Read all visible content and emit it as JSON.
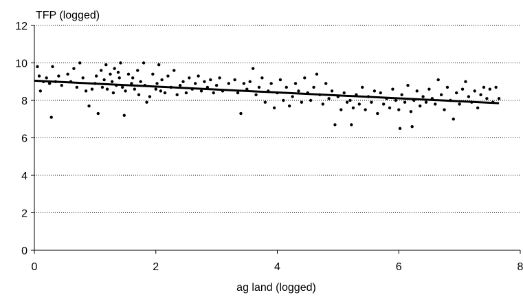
{
  "chart_data": {
    "type": "scatter",
    "title": "",
    "ylabel": "TFP (logged)",
    "xlabel": "ag land (logged)",
    "xlim": [
      0,
      8
    ],
    "ylim": [
      0,
      12
    ],
    "x_ticks": [
      "0",
      "2",
      "4",
      "6",
      "8"
    ],
    "y_ticks": [
      "0",
      "2",
      "4",
      "6",
      "8",
      "10",
      "12"
    ],
    "grid": "horizontal dotted",
    "legend": "none",
    "colors": {
      "points": "#000000",
      "trendline": "#000000",
      "grid": "#000000",
      "axes": "#000000"
    },
    "trendline": {
      "type": "linear",
      "x": [
        0.0,
        7.65
      ],
      "y": [
        9.05,
        7.85
      ]
    },
    "series": [
      {
        "points": [
          [
            0.05,
            9.8
          ],
          [
            0.08,
            9.3
          ],
          [
            0.1,
            8.5
          ],
          [
            0.15,
            9.0
          ],
          [
            0.2,
            9.2
          ],
          [
            0.25,
            8.9
          ],
          [
            0.28,
            7.1
          ],
          [
            0.3,
            9.8
          ],
          [
            0.35,
            9.0
          ],
          [
            0.4,
            9.3
          ],
          [
            0.45,
            8.8
          ],
          [
            0.55,
            9.4
          ],
          [
            0.6,
            9.0
          ],
          [
            0.65,
            9.7
          ],
          [
            0.7,
            8.7
          ],
          [
            0.75,
            10.0
          ],
          [
            0.8,
            9.2
          ],
          [
            0.85,
            8.5
          ],
          [
            0.9,
            7.7
          ],
          [
            0.95,
            8.6
          ],
          [
            1.0,
            8.9
          ],
          [
            1.02,
            9.3
          ],
          [
            1.05,
            7.3
          ],
          [
            1.1,
            9.6
          ],
          [
            1.12,
            8.7
          ],
          [
            1.15,
            9.1
          ],
          [
            1.18,
            9.9
          ],
          [
            1.2,
            8.6
          ],
          [
            1.25,
            9.4
          ],
          [
            1.28,
            9.0
          ],
          [
            1.3,
            8.4
          ],
          [
            1.32,
            9.7
          ],
          [
            1.35,
            8.8
          ],
          [
            1.38,
            9.5
          ],
          [
            1.4,
            9.2
          ],
          [
            1.42,
            10.0
          ],
          [
            1.45,
            8.7
          ],
          [
            1.48,
            7.2
          ],
          [
            1.5,
            8.5
          ],
          [
            1.55,
            9.4
          ],
          [
            1.6,
            8.9
          ],
          [
            1.62,
            9.2
          ],
          [
            1.65,
            8.6
          ],
          [
            1.7,
            9.6
          ],
          [
            1.72,
            8.3
          ],
          [
            1.75,
            9.0
          ],
          [
            1.8,
            10.0
          ],
          [
            1.82,
            8.8
          ],
          [
            1.85,
            7.9
          ],
          [
            1.9,
            8.2
          ],
          [
            1.95,
            9.4
          ],
          [
            2.0,
            8.6
          ],
          [
            2.02,
            8.9
          ],
          [
            2.05,
            9.9
          ],
          [
            2.08,
            8.5
          ],
          [
            2.1,
            9.1
          ],
          [
            2.15,
            8.4
          ],
          [
            2.2,
            9.3
          ],
          [
            2.25,
            8.7
          ],
          [
            2.3,
            9.6
          ],
          [
            2.35,
            8.3
          ],
          [
            2.4,
            8.8
          ],
          [
            2.45,
            9.0
          ],
          [
            2.5,
            8.4
          ],
          [
            2.55,
            9.2
          ],
          [
            2.6,
            8.6
          ],
          [
            2.65,
            8.9
          ],
          [
            2.7,
            9.3
          ],
          [
            2.75,
            8.5
          ],
          [
            2.8,
            9.0
          ],
          [
            2.85,
            8.7
          ],
          [
            2.9,
            9.1
          ],
          [
            2.95,
            8.4
          ],
          [
            3.0,
            8.8
          ],
          [
            3.05,
            9.2
          ],
          [
            3.1,
            8.5
          ],
          [
            3.2,
            8.9
          ],
          [
            3.3,
            9.1
          ],
          [
            3.35,
            8.4
          ],
          [
            3.4,
            7.3
          ],
          [
            3.45,
            8.9
          ],
          [
            3.5,
            8.6
          ],
          [
            3.55,
            9.0
          ],
          [
            3.6,
            9.7
          ],
          [
            3.65,
            8.3
          ],
          [
            3.7,
            8.7
          ],
          [
            3.75,
            9.2
          ],
          [
            3.8,
            7.9
          ],
          [
            3.85,
            8.5
          ],
          [
            3.9,
            8.9
          ],
          [
            3.95,
            7.6
          ],
          [
            4.0,
            8.4
          ],
          [
            4.05,
            9.1
          ],
          [
            4.1,
            8.0
          ],
          [
            4.15,
            8.7
          ],
          [
            4.2,
            7.7
          ],
          [
            4.25,
            8.2
          ],
          [
            4.3,
            8.9
          ],
          [
            4.35,
            8.5
          ],
          [
            4.4,
            7.9
          ],
          [
            4.45,
            9.2
          ],
          [
            4.5,
            8.4
          ],
          [
            4.55,
            8.0
          ],
          [
            4.6,
            8.7
          ],
          [
            4.65,
            9.4
          ],
          [
            4.7,
            8.3
          ],
          [
            4.75,
            7.8
          ],
          [
            4.8,
            8.9
          ],
          [
            4.85,
            8.1
          ],
          [
            4.9,
            8.5
          ],
          [
            4.95,
            6.7
          ],
          [
            5.0,
            8.2
          ],
          [
            5.05,
            7.5
          ],
          [
            5.1,
            8.4
          ],
          [
            5.15,
            7.9
          ],
          [
            5.2,
            8.0
          ],
          [
            5.22,
            6.7
          ],
          [
            5.25,
            7.6
          ],
          [
            5.3,
            8.3
          ],
          [
            5.35,
            7.8
          ],
          [
            5.4,
            8.7
          ],
          [
            5.45,
            7.5
          ],
          [
            5.5,
            8.2
          ],
          [
            5.55,
            7.9
          ],
          [
            5.6,
            8.5
          ],
          [
            5.65,
            7.3
          ],
          [
            5.7,
            8.4
          ],
          [
            5.75,
            7.8
          ],
          [
            5.8,
            8.1
          ],
          [
            5.85,
            7.6
          ],
          [
            5.9,
            8.6
          ],
          [
            5.95,
            8.0
          ],
          [
            6.0,
            7.5
          ],
          [
            6.02,
            6.5
          ],
          [
            6.05,
            8.3
          ],
          [
            6.1,
            7.9
          ],
          [
            6.15,
            8.8
          ],
          [
            6.2,
            7.4
          ],
          [
            6.22,
            6.6
          ],
          [
            6.25,
            8.0
          ],
          [
            6.3,
            8.5
          ],
          [
            6.35,
            7.7
          ],
          [
            6.4,
            8.2
          ],
          [
            6.45,
            7.9
          ],
          [
            6.5,
            8.6
          ],
          [
            6.55,
            8.1
          ],
          [
            6.6,
            7.8
          ],
          [
            6.65,
            9.1
          ],
          [
            6.7,
            8.3
          ],
          [
            6.75,
            7.5
          ],
          [
            6.8,
            8.7
          ],
          [
            6.85,
            8.0
          ],
          [
            6.9,
            7.0
          ],
          [
            6.95,
            8.4
          ],
          [
            7.0,
            7.8
          ],
          [
            7.05,
            8.6
          ],
          [
            7.1,
            9.0
          ],
          [
            7.15,
            8.2
          ],
          [
            7.2,
            7.9
          ],
          [
            7.25,
            8.5
          ],
          [
            7.3,
            7.6
          ],
          [
            7.35,
            8.3
          ],
          [
            7.4,
            8.7
          ],
          [
            7.45,
            8.1
          ],
          [
            7.5,
            8.6
          ],
          [
            7.55,
            7.9
          ],
          [
            7.6,
            8.7
          ],
          [
            7.65,
            8.1
          ]
        ]
      }
    ]
  }
}
